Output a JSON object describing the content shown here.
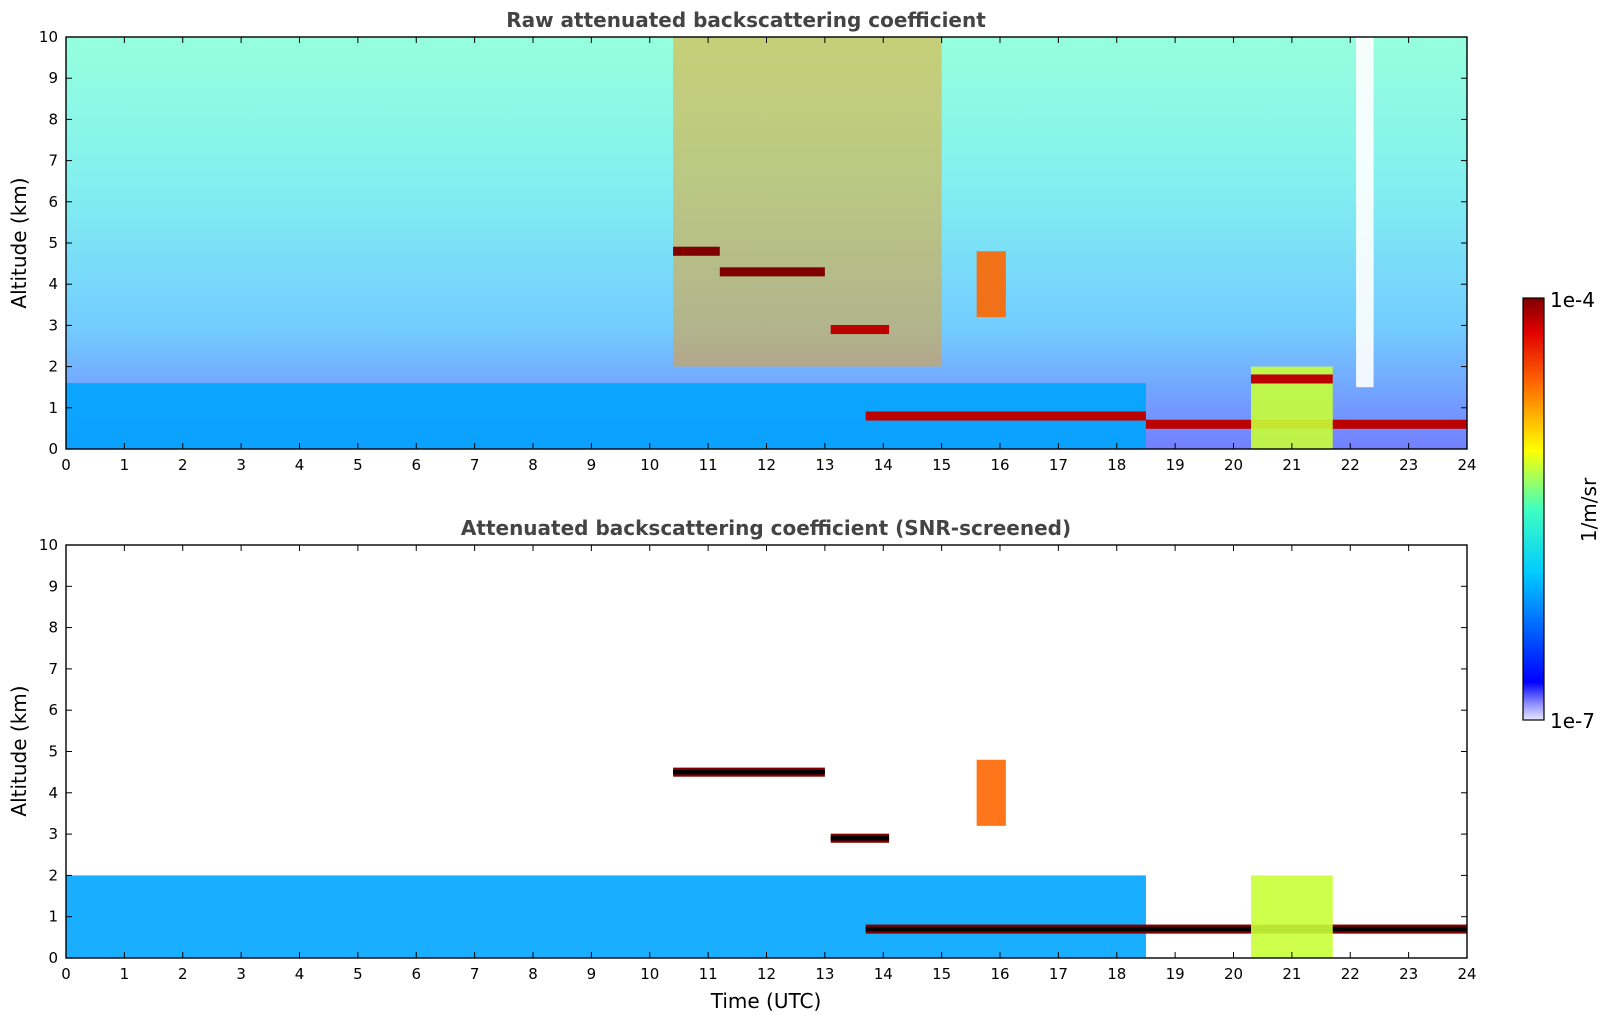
{
  "chart_data": [
    {
      "type": "heatmap",
      "title": "Raw attenuated backscattering coefficient",
      "xlabel": "",
      "ylabel": "Altitude (km)",
      "xlim": [
        0,
        24
      ],
      "ylim": [
        0,
        10
      ],
      "xticks": [
        "0",
        "1",
        "2",
        "3",
        "4",
        "5",
        "6",
        "7",
        "8",
        "9",
        "10",
        "11",
        "12",
        "13",
        "14",
        "15",
        "16",
        "17",
        "18",
        "19",
        "20",
        "21",
        "22",
        "23",
        "24"
      ],
      "yticks": [
        "0",
        "1",
        "2",
        "3",
        "4",
        "5",
        "6",
        "7",
        "8",
        "9",
        "10"
      ],
      "features": [
        {
          "kind": "boundary_layer",
          "x": [
            0,
            18.5
          ],
          "altitude_top": 1.6,
          "level": 0.3
        },
        {
          "kind": "noisy_background",
          "x": [
            10.4,
            15.0
          ],
          "altitude_range": [
            2,
            10
          ],
          "level": 0.75
        },
        {
          "kind": "cloud_layer",
          "x": [
            10.4,
            11.2
          ],
          "altitude": 4.8,
          "level": 1.0
        },
        {
          "kind": "cloud_layer",
          "x": [
            11.2,
            13.0
          ],
          "altitude": 4.3,
          "level": 1.0
        },
        {
          "kind": "cloud_layer",
          "x": [
            13.1,
            14.1
          ],
          "altitude": 2.9,
          "level": 0.95
        },
        {
          "kind": "cloud_layer",
          "x": [
            13.7,
            18.5
          ],
          "altitude": 0.8,
          "level": 0.95
        },
        {
          "kind": "cloud_layer",
          "x": [
            18.5,
            24.0
          ],
          "altitude": 0.6,
          "level": 0.95
        },
        {
          "kind": "fall_streak",
          "x": [
            15.6,
            16.1
          ],
          "altitude_range": [
            3.2,
            4.8
          ],
          "level": 0.8
        },
        {
          "kind": "cloud_column",
          "x": [
            20.3,
            21.7
          ],
          "altitude_range": [
            0,
            2.0
          ],
          "level": 0.6
        },
        {
          "kind": "cloud_layer",
          "x": [
            20.3,
            21.7
          ],
          "altitude": 1.7,
          "level": 0.95
        },
        {
          "kind": "signal_gap",
          "x": [
            22.1,
            22.4
          ],
          "altitude_range": [
            1.5,
            10
          ]
        }
      ]
    },
    {
      "type": "heatmap",
      "title": "Attenuated backscattering coefficient (SNR-screened)",
      "xlabel": "Time (UTC)",
      "ylabel": "Altitude (km)",
      "xlim": [
        0,
        24
      ],
      "ylim": [
        0,
        10
      ],
      "xticks": [
        "0",
        "1",
        "2",
        "3",
        "4",
        "5",
        "6",
        "7",
        "8",
        "9",
        "10",
        "11",
        "12",
        "13",
        "14",
        "15",
        "16",
        "17",
        "18",
        "19",
        "20",
        "21",
        "22",
        "23",
        "24"
      ],
      "yticks": [
        "0",
        "1",
        "2",
        "3",
        "4",
        "5",
        "6",
        "7",
        "8",
        "9",
        "10"
      ],
      "features": [
        {
          "kind": "boundary_layer",
          "x": [
            0,
            18.5
          ],
          "altitude_top": 2.0,
          "level": 0.3
        },
        {
          "kind": "cloud_layer",
          "x": [
            10.4,
            13.0
          ],
          "altitude": 4.5,
          "level": 1.0
        },
        {
          "kind": "cloud_layer",
          "x": [
            13.1,
            14.1
          ],
          "altitude": 2.9,
          "level": 1.0
        },
        {
          "kind": "cloud_layer",
          "x": [
            13.7,
            24.0
          ],
          "altitude": 0.7,
          "level": 1.0
        },
        {
          "kind": "fall_streak",
          "x": [
            15.6,
            16.1
          ],
          "altitude_range": [
            3.2,
            4.8
          ],
          "level": 0.8
        },
        {
          "kind": "cloud_column",
          "x": [
            20.3,
            21.7
          ],
          "altitude_range": [
            0,
            2.0
          ],
          "level": 0.6
        }
      ]
    }
  ],
  "colorbar": {
    "label": "1/m/sr",
    "max_label": "1e-4",
    "min_label": "1e-7",
    "colormap": "jet",
    "colors": [
      "#ffffff",
      "#0000ff",
      "#00ffff",
      "#ffff00",
      "#ff0000",
      "#800000"
    ]
  }
}
